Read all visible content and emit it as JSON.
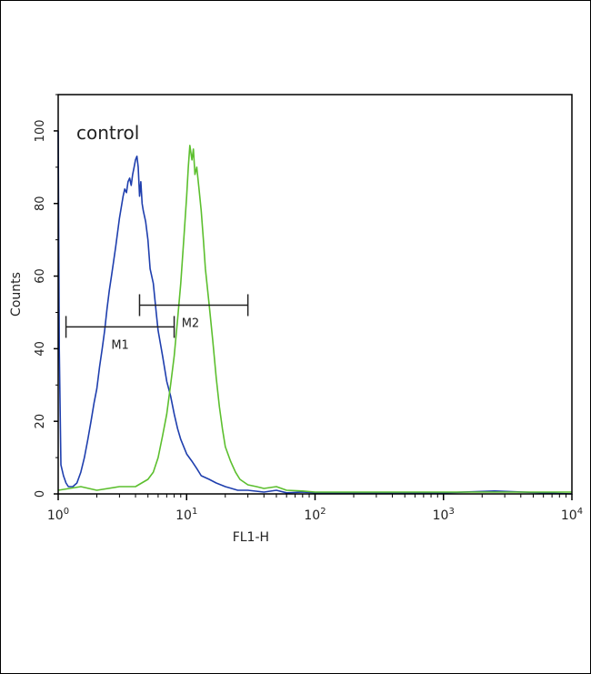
{
  "chart_data": {
    "type": "line",
    "annotation": "control",
    "xlabel": "FL1-H",
    "ylabel": "Counts",
    "x_scale": "log",
    "xlim": [
      1,
      10000
    ],
    "ylim": [
      0,
      110
    ],
    "x_ticks": [
      {
        "base": "10",
        "exp": "0",
        "value": 1
      },
      {
        "base": "10",
        "exp": "1",
        "value": 10
      },
      {
        "base": "10",
        "exp": "2",
        "value": 100
      },
      {
        "base": "10",
        "exp": "3",
        "value": 1000
      },
      {
        "base": "10",
        "exp": "4",
        "value": 10000
      }
    ],
    "y_ticks": [
      "0",
      "20",
      "40",
      "60",
      "80",
      "100"
    ],
    "series": [
      {
        "color": "#1f3fae",
        "x": [
          1.0,
          1.02,
          1.05,
          1.1,
          1.15,
          1.2,
          1.3,
          1.4,
          1.5,
          1.6,
          1.7,
          1.8,
          1.9,
          2.0,
          2.1,
          2.2,
          2.3,
          2.4,
          2.5,
          2.6,
          2.7,
          2.8,
          2.9,
          3.0,
          3.1,
          3.2,
          3.3,
          3.4,
          3.5,
          3.6,
          3.7,
          3.8,
          3.9,
          4.0,
          4.1,
          4.2,
          4.3,
          4.4,
          4.5,
          4.6,
          4.8,
          5.0,
          5.2,
          5.5,
          5.8,
          6.0,
          6.5,
          7.0,
          7.5,
          8.0,
          8.5,
          9.0,
          10.0,
          11.0,
          12.0,
          13.0,
          15.0,
          17.0,
          20.0,
          25.0,
          30.0,
          40.0,
          50.0,
          60.0,
          80.0,
          100.0,
          200.0,
          500.0,
          1000.0,
          2500.0,
          10000.0
        ],
        "values": [
          100,
          40,
          8,
          5,
          3,
          2,
          2,
          3,
          6,
          10,
          15,
          20,
          25,
          29,
          35,
          40,
          45,
          51,
          56,
          60,
          64,
          68,
          72,
          76,
          79,
          82,
          84,
          83,
          86,
          87,
          85,
          88,
          90,
          92,
          93,
          90,
          82,
          86,
          80,
          78,
          75,
          70,
          62,
          58,
          50,
          45,
          38,
          31,
          27,
          22,
          18,
          15,
          11,
          9,
          7,
          5,
          4,
          3,
          2,
          1,
          1,
          0.5,
          1,
          0.3,
          0.5,
          0.3,
          0.3,
          0.2,
          0.3,
          0.8,
          0
        ]
      },
      {
        "color": "#5cbf2e",
        "x": [
          1.0,
          1.5,
          2.0,
          3.0,
          4.0,
          5.0,
          5.5,
          6.0,
          6.5,
          7.0,
          7.5,
          8.0,
          8.5,
          9.0,
          9.5,
          10.0,
          10.3,
          10.6,
          11.0,
          11.3,
          11.6,
          12.0,
          12.5,
          13.0,
          13.5,
          14.0,
          15.0,
          16.0,
          17.0,
          18.0,
          19.0,
          20.0,
          22.0,
          24.0,
          26.0,
          30.0,
          35.0,
          40.0,
          50.0,
          60.0,
          80.0,
          100.0,
          200.0,
          500.0,
          1000.0,
          2000.0,
          10000.0
        ],
        "values": [
          1,
          2,
          1,
          2,
          2,
          4,
          6,
          10,
          16,
          22,
          30,
          38,
          48,
          58,
          70,
          82,
          90,
          96,
          92,
          95,
          88,
          90,
          84,
          78,
          70,
          62,
          52,
          42,
          32,
          24,
          18,
          13,
          9,
          6,
          4,
          2.5,
          2,
          1.5,
          2,
          1,
          0.8,
          0.5,
          0.5,
          0.5,
          0.5,
          0.5,
          0.5
        ]
      }
    ],
    "markers": [
      {
        "label": "M1",
        "x_start": 1.15,
        "x_end": 8.0,
        "y": 46
      },
      {
        "label": "M2",
        "x_start": 4.3,
        "x_end": 30.0,
        "y": 52
      }
    ]
  }
}
